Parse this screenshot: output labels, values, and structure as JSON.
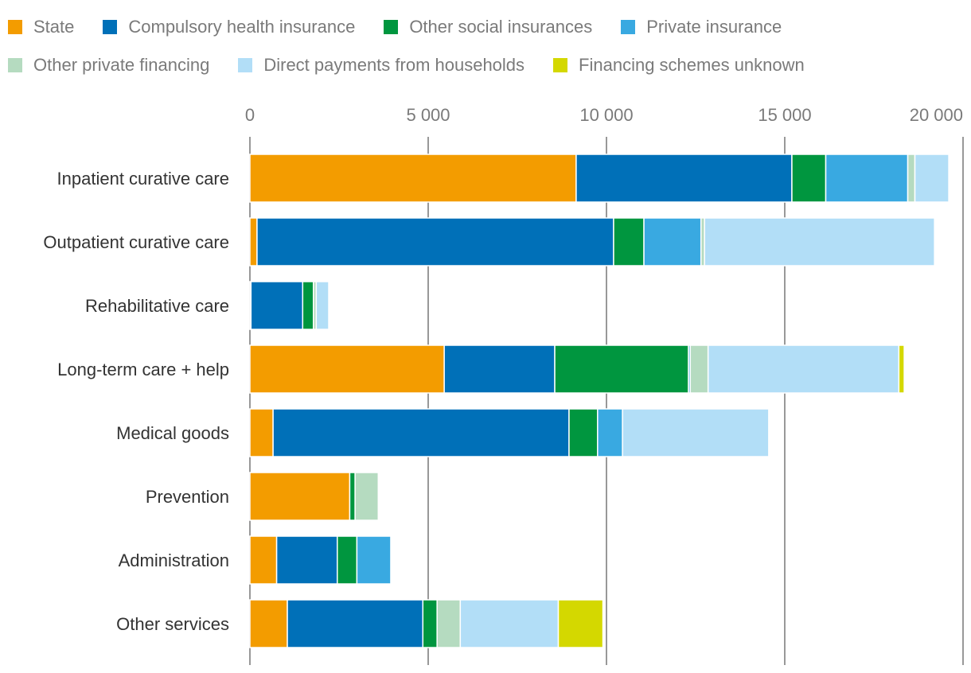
{
  "chart_data": {
    "type": "bar",
    "orientation": "horizontal",
    "stacked": true,
    "title": "",
    "xlabel": "",
    "ylabel": "",
    "xlim": [
      0,
      20000
    ],
    "x_ticks": [
      0,
      5000,
      10000,
      15000,
      20000
    ],
    "x_tick_labels": [
      "0",
      "5 000",
      "10 000",
      "15 000",
      "20 000"
    ],
    "grid": true,
    "legend_position": "top",
    "categories": [
      "Inpatient curative care",
      "Outpatient curative care",
      "Rehabilitative care",
      "Long-term care + help",
      "Medical goods",
      "Prevention",
      "Administration",
      "Other services"
    ],
    "series": [
      {
        "name": "State",
        "color": "#f39c00",
        "values": [
          9150,
          200,
          30,
          5450,
          650,
          2800,
          750,
          1050
        ]
      },
      {
        "name": "Compulsory health insurance",
        "color": "#0070b8",
        "values": [
          6050,
          10000,
          1450,
          3100,
          8300,
          0,
          1700,
          3800
        ]
      },
      {
        "name": "Other social insurances",
        "color": "#00963f",
        "values": [
          950,
          850,
          300,
          3750,
          800,
          150,
          550,
          400
        ]
      },
      {
        "name": "Private insurance",
        "color": "#39a9e1",
        "values": [
          2300,
          1600,
          0,
          50,
          700,
          0,
          950,
          0
        ]
      },
      {
        "name": "Other private financing",
        "color": "#b5dbc0",
        "values": [
          200,
          100,
          80,
          500,
          0,
          650,
          0,
          650
        ]
      },
      {
        "name": "Direct payments from households",
        "color": "#b2def7",
        "values": [
          950,
          6450,
          350,
          5350,
          4100,
          0,
          0,
          2750
        ]
      },
      {
        "name": "Financing schemes unknown",
        "color": "#d4d800",
        "values": [
          0,
          0,
          0,
          150,
          0,
          0,
          0,
          1250
        ]
      }
    ]
  }
}
